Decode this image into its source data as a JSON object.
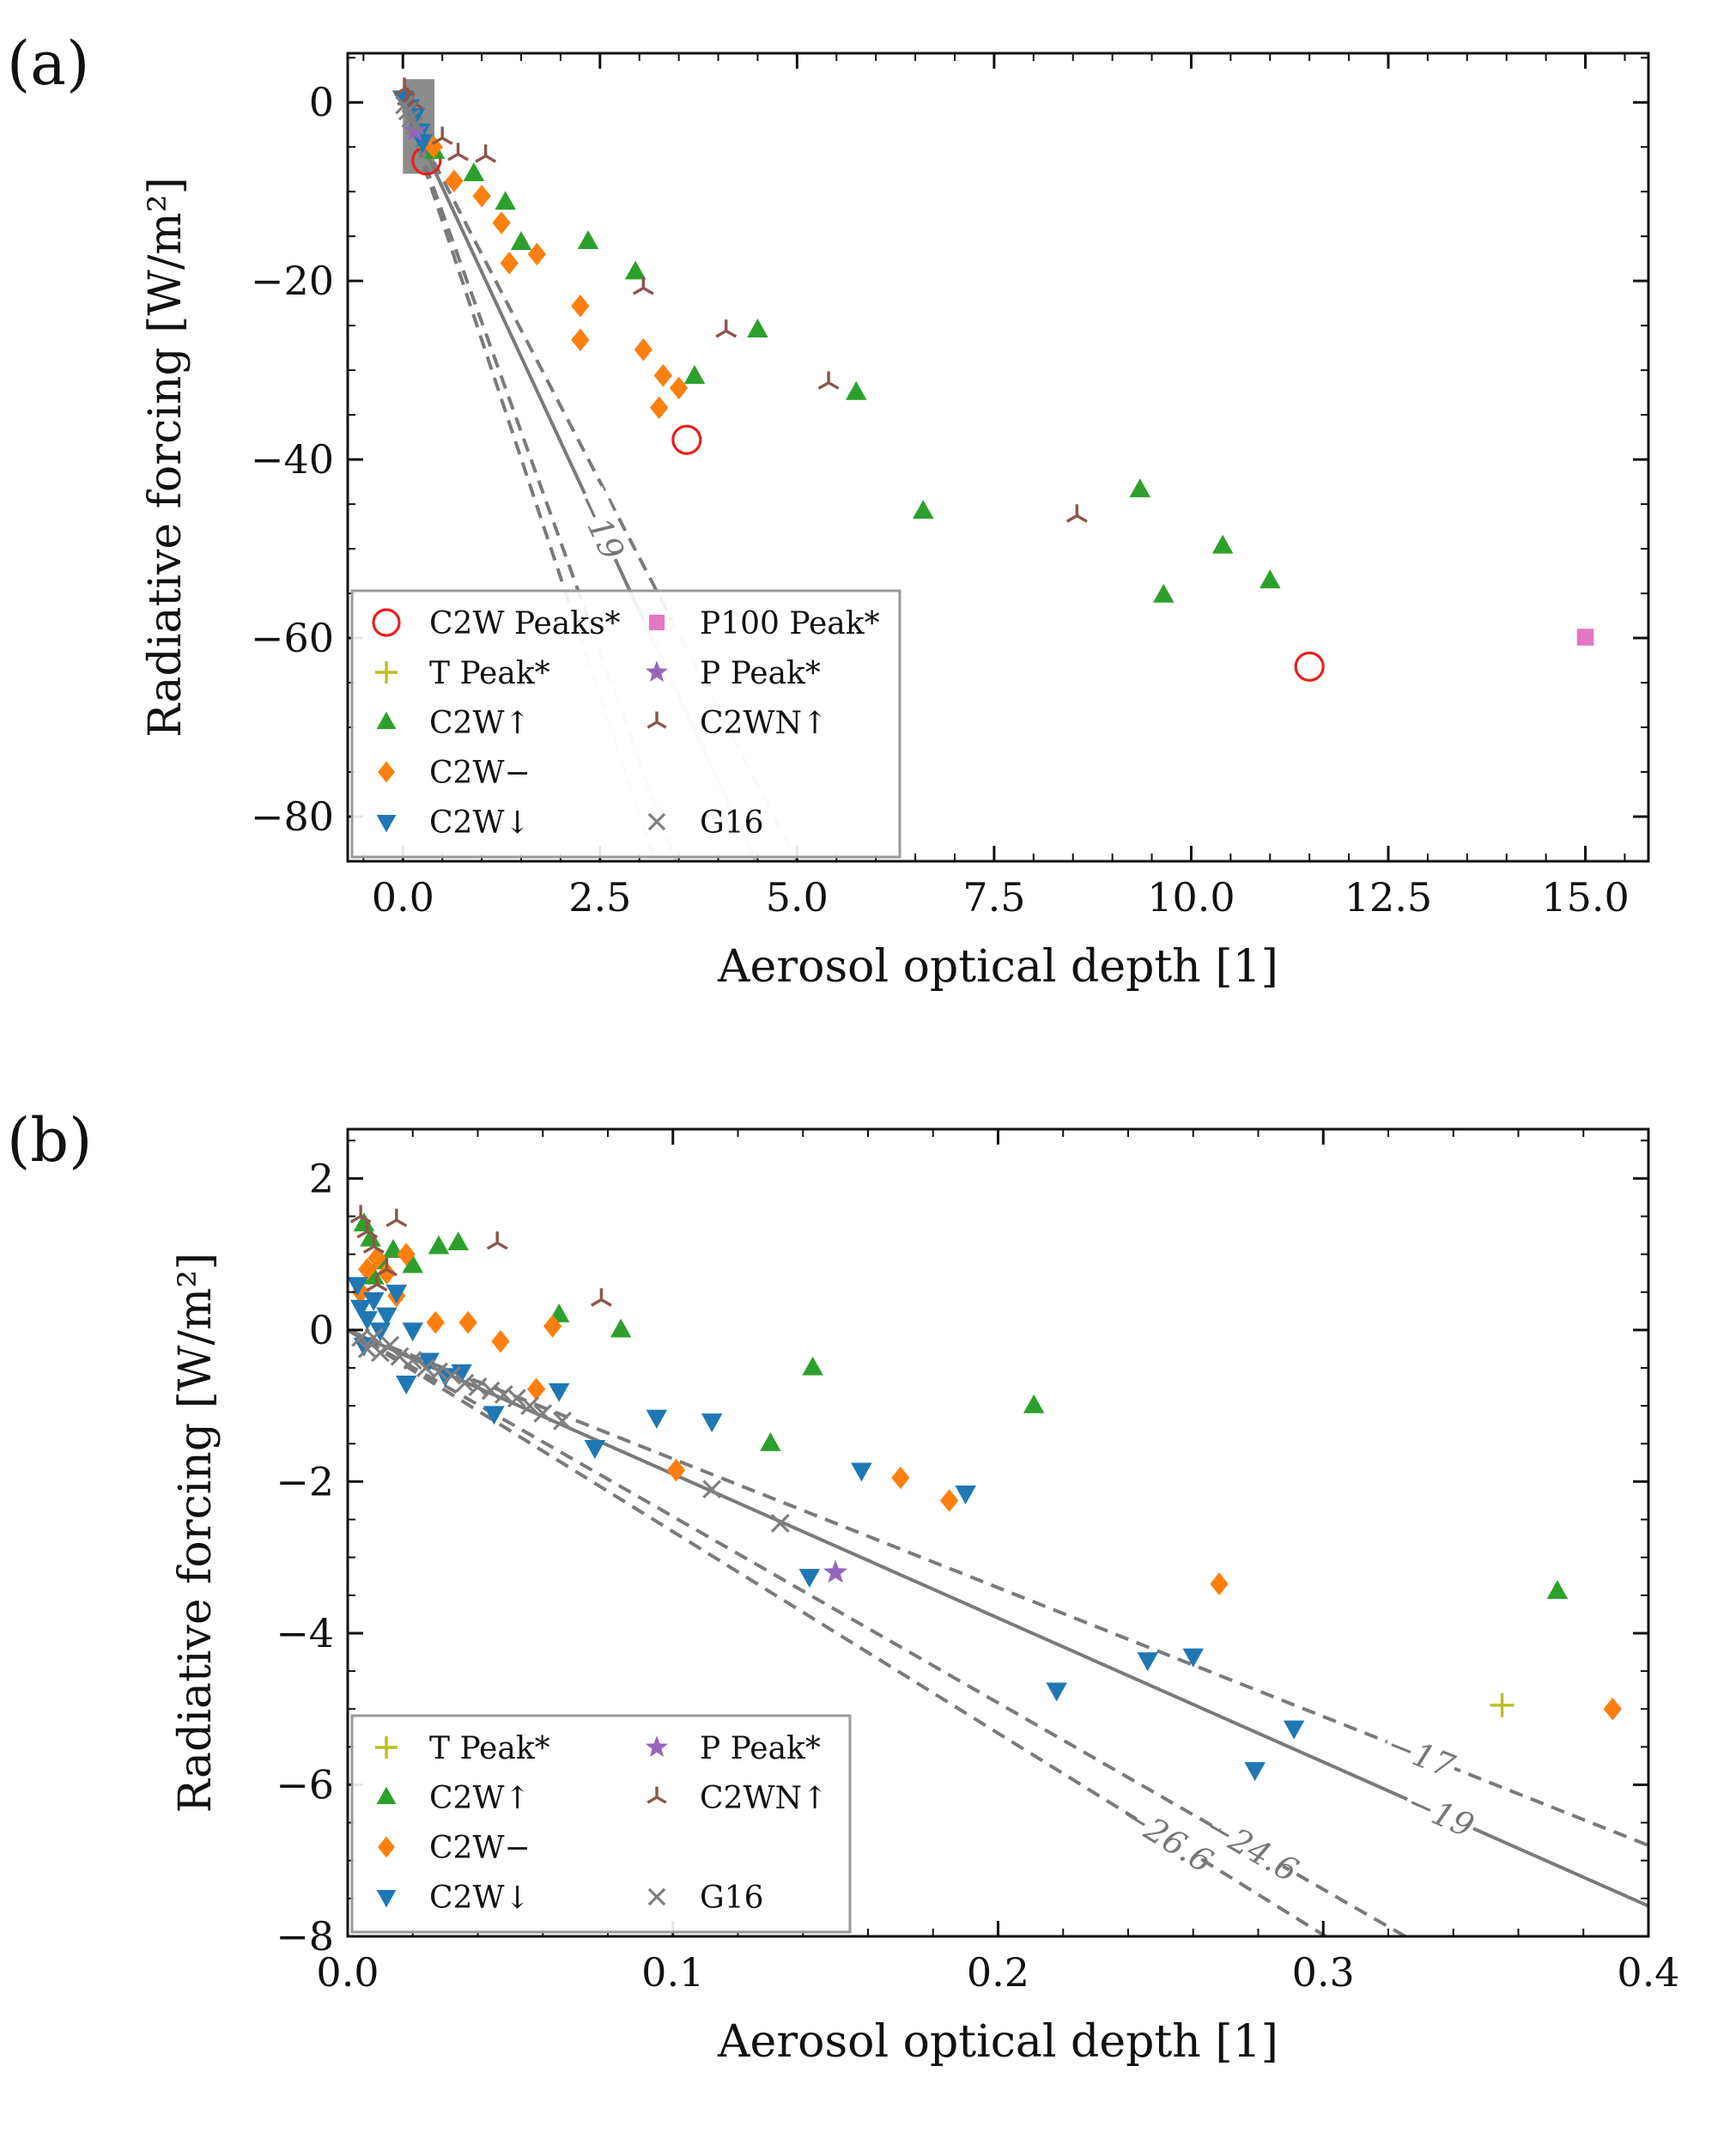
{
  "chart_data": [
    {
      "panel": "(a)",
      "type": "scatter",
      "xlabel": "Aerosol optical depth [1]",
      "ylabel": "Radiative forcing [W/m²]",
      "xlim": [
        -0.7,
        15.8
      ],
      "ylim": [
        -85,
        5.5
      ],
      "xticks": [
        0.0,
        2.5,
        5.0,
        7.5,
        10.0,
        12.5,
        15.0
      ],
      "xtick_labels": [
        "0.0",
        "2.5",
        "5.0",
        "7.5",
        "10.0",
        "12.5",
        "15.0"
      ],
      "yticks": [
        0,
        -20,
        -40,
        -60,
        -80
      ],
      "ytick_labels": [
        "0",
        "−20",
        "−40",
        "−60",
        "−80"
      ],
      "grid": false,
      "legend_position": "lower-left",
      "legend_columns": 2,
      "reference_lines": [
        {
          "slope": -19,
          "style": "solid",
          "label": "−19"
        },
        {
          "slope": -17,
          "style": "dashed"
        },
        {
          "slope": -24.6,
          "style": "dashed"
        },
        {
          "slope": -26.6,
          "style": "dashed"
        }
      ],
      "highlight_box": {
        "x": [
          0.0,
          0.4
        ],
        "y": [
          -8,
          2.6
        ]
      },
      "series": [
        {
          "name": "C2W Peaks*",
          "marker": "circle-open",
          "color": "#e8201c",
          "points": [
            [
              0.3,
              -6.5
            ],
            [
              3.6,
              -37.8
            ],
            [
              11.5,
              -63.2
            ]
          ]
        },
        {
          "name": "T Peak*",
          "marker": "plus",
          "color": "#bcbd22",
          "points": [
            [
              0.35,
              -5.0
            ]
          ]
        },
        {
          "name": "C2W↑",
          "marker": "triangle-up",
          "color": "#2ca02c",
          "points": [
            [
              0.4,
              -5.5
            ],
            [
              0.9,
              -8.0
            ],
            [
              1.3,
              -11.2
            ],
            [
              1.5,
              -15.7
            ],
            [
              2.35,
              -15.6
            ],
            [
              2.95,
              -19.0
            ],
            [
              3.7,
              -30.7
            ],
            [
              4.5,
              -25.5
            ],
            [
              5.75,
              -32.5
            ],
            [
              6.6,
              -45.8
            ],
            [
              9.35,
              -43.4
            ],
            [
              9.65,
              -55.2
            ],
            [
              10.4,
              -49.7
            ],
            [
              11.0,
              -53.6
            ]
          ]
        },
        {
          "name": "C2W−",
          "marker": "diamond",
          "color": "#ff7f0e",
          "points": [
            [
              0.39,
              -5.0
            ],
            [
              0.65,
              -8.8
            ],
            [
              1.0,
              -10.5
            ],
            [
              1.25,
              -13.5
            ],
            [
              1.35,
              -18.0
            ],
            [
              1.7,
              -17.0
            ],
            [
              2.25,
              -22.8
            ],
            [
              2.25,
              -26.6
            ],
            [
              3.05,
              -27.7
            ],
            [
              3.3,
              -30.6
            ],
            [
              3.25,
              -34.2
            ],
            [
              3.5,
              -32.0
            ]
          ]
        },
        {
          "name": "C2W↓",
          "marker": "triangle-down",
          "color": "#1f77b4",
          "points": [
            [
              0.0,
              0.5
            ],
            [
              0.08,
              -0.5
            ],
            [
              0.15,
              -1.5
            ],
            [
              0.22,
              -3.2
            ],
            [
              0.25,
              -4.4
            ]
          ]
        },
        {
          "name": "P100 Peak*",
          "marker": "square",
          "color": "#e377c2",
          "points": [
            [
              15.0,
              -59.9
            ]
          ]
        },
        {
          "name": "P Peak*",
          "marker": "star",
          "color": "#9467bd",
          "points": [
            [
              0.15,
              -3.2
            ]
          ]
        },
        {
          "name": "C2WN↑",
          "marker": "tri-down",
          "color": "#8c564b",
          "points": [
            [
              0.02,
              1.5
            ],
            [
              0.06,
              0.4
            ],
            [
              0.12,
              0.0
            ],
            [
              0.5,
              -4.0
            ],
            [
              0.7,
              -5.8
            ],
            [
              1.05,
              -6.0
            ],
            [
              3.05,
              -20.8
            ],
            [
              4.1,
              -25.6
            ],
            [
              5.4,
              -31.4
            ],
            [
              8.55,
              -46.3
            ]
          ]
        },
        {
          "name": "G16",
          "marker": "x",
          "color": "#7f7f7f",
          "points": [
            [
              0.02,
              -0.3
            ],
            [
              0.06,
              -1.0
            ],
            [
              0.1,
              -1.8
            ],
            [
              0.15,
              -2.6
            ]
          ]
        }
      ]
    },
    {
      "panel": "(b)",
      "type": "scatter",
      "xlabel": "Aerosol optical depth [1]",
      "ylabel": "Radiative forcing [W/m²]",
      "xlim": [
        0.0,
        0.4
      ],
      "ylim": [
        -8,
        2.65
      ],
      "xticks": [
        0.0,
        0.1,
        0.2,
        0.3,
        0.4
      ],
      "xtick_labels": [
        "0.0",
        "0.1",
        "0.2",
        "0.3",
        "0.4"
      ],
      "yticks": [
        2,
        0,
        -2,
        -4,
        -6,
        -8
      ],
      "ytick_labels": [
        "2",
        "0",
        "−2",
        "−4",
        "−6",
        "−8"
      ],
      "grid": false,
      "legend_position": "lower-left",
      "legend_columns": 2,
      "reference_lines": [
        {
          "slope": -17,
          "style": "dashed",
          "label": "−17"
        },
        {
          "slope": -19,
          "style": "solid",
          "label": "−19"
        },
        {
          "slope": -24.6,
          "style": "dashed",
          "label": "−24.6"
        },
        {
          "slope": -26.6,
          "style": "dashed",
          "label": "−26.6"
        }
      ],
      "series": [
        {
          "name": "T Peak*",
          "marker": "plus",
          "color": "#bcbd22",
          "points": [
            [
              0.355,
              -4.95
            ]
          ]
        },
        {
          "name": "C2W↑",
          "marker": "triangle-up",
          "color": "#2ca02c",
          "points": [
            [
              0.005,
              1.4
            ],
            [
              0.007,
              1.2
            ],
            [
              0.008,
              0.7
            ],
            [
              0.01,
              0.9
            ],
            [
              0.014,
              1.05
            ],
            [
              0.02,
              0.85
            ],
            [
              0.028,
              1.1
            ],
            [
              0.034,
              1.15
            ],
            [
              0.065,
              0.2
            ],
            [
              0.084,
              0.0
            ],
            [
              0.13,
              -1.5
            ],
            [
              0.143,
              -0.5
            ],
            [
              0.211,
              -1.0
            ],
            [
              0.372,
              -3.45
            ]
          ]
        },
        {
          "name": "C2W−",
          "marker": "diamond",
          "color": "#ff7f0e",
          "points": [
            [
              0.004,
              0.5
            ],
            [
              0.006,
              0.8
            ],
            [
              0.009,
              0.95
            ],
            [
              0.012,
              0.75
            ],
            [
              0.015,
              0.45
            ],
            [
              0.018,
              1.0
            ],
            [
              0.027,
              0.1
            ],
            [
              0.037,
              0.1
            ],
            [
              0.047,
              -0.15
            ],
            [
              0.058,
              -0.78
            ],
            [
              0.063,
              0.05
            ],
            [
              0.101,
              -1.85
            ],
            [
              0.17,
              -1.95
            ],
            [
              0.185,
              -2.25
            ],
            [
              0.268,
              -3.35
            ],
            [
              0.389,
              -5.0
            ]
          ]
        },
        {
          "name": "C2W↓",
          "marker": "triangle-down",
          "color": "#1f77b4",
          "points": [
            [
              0.003,
              0.6
            ],
            [
              0.004,
              0.3
            ],
            [
              0.005,
              -0.2
            ],
            [
              0.006,
              0.15
            ],
            [
              0.008,
              0.4
            ],
            [
              0.01,
              0.0
            ],
            [
              0.012,
              0.2
            ],
            [
              0.015,
              0.5
            ],
            [
              0.018,
              -0.7
            ],
            [
              0.02,
              0.0
            ],
            [
              0.025,
              -0.4
            ],
            [
              0.03,
              -0.6
            ],
            [
              0.035,
              -0.55
            ],
            [
              0.045,
              -1.1
            ],
            [
              0.065,
              -0.8
            ],
            [
              0.076,
              -1.55
            ],
            [
              0.095,
              -1.15
            ],
            [
              0.112,
              -1.2
            ],
            [
              0.142,
              -3.25
            ],
            [
              0.158,
              -1.85
            ],
            [
              0.19,
              -2.15
            ],
            [
              0.218,
              -4.75
            ],
            [
              0.246,
              -4.35
            ],
            [
              0.26,
              -4.3
            ],
            [
              0.279,
              -5.8
            ],
            [
              0.291,
              -5.25
            ]
          ]
        },
        {
          "name": "P Peak*",
          "marker": "star",
          "color": "#9467bd",
          "points": [
            [
              0.15,
              -3.2
            ]
          ]
        },
        {
          "name": "C2WN↑",
          "marker": "tri-down",
          "color": "#8c564b",
          "points": [
            [
              0.004,
              1.5
            ],
            [
              0.006,
              1.3
            ],
            [
              0.008,
              1.1
            ],
            [
              0.009,
              0.6
            ],
            [
              0.012,
              0.8
            ],
            [
              0.015,
              1.45
            ],
            [
              0.046,
              1.15
            ],
            [
              0.078,
              0.4
            ]
          ]
        },
        {
          "name": "G16",
          "marker": "x",
          "color": "#7f7f7f",
          "points": [
            [
              0.004,
              -0.1
            ],
            [
              0.006,
              -0.25
            ],
            [
              0.008,
              -0.1
            ],
            [
              0.01,
              -0.3
            ],
            [
              0.013,
              -0.2
            ],
            [
              0.016,
              -0.35
            ],
            [
              0.02,
              -0.4
            ],
            [
              0.024,
              -0.5
            ],
            [
              0.028,
              -0.55
            ],
            [
              0.032,
              -0.6
            ],
            [
              0.036,
              -0.7
            ],
            [
              0.04,
              -0.75
            ],
            [
              0.044,
              -0.8
            ],
            [
              0.048,
              -0.85
            ],
            [
              0.052,
              -0.9
            ],
            [
              0.056,
              -1.0
            ],
            [
              0.06,
              -1.1
            ],
            [
              0.066,
              -1.2
            ],
            [
              0.112,
              -2.1
            ],
            [
              0.133,
              -2.55
            ]
          ]
        }
      ]
    }
  ]
}
